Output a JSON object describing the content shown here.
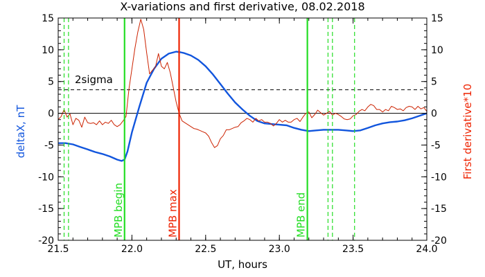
{
  "chart_data": {
    "type": "line",
    "title": "X-variations and first derivative, 08.02.2018",
    "xlabel": "UT, hours",
    "ylabel_left": "deltaX, nT",
    "ylabel_right": "First derivative*10",
    "xlim": [
      21.5,
      24.0
    ],
    "ylim": [
      -20,
      15
    ],
    "x_ticks": [
      "21.5",
      "22.0",
      "22.5",
      "23.0",
      "23.5",
      "24.0"
    ],
    "y_ticks": [
      "15",
      "10",
      "5",
      "0",
      "-5",
      "-10",
      "-15",
      "-20"
    ],
    "y_ticks_right": [
      "15",
      "10",
      "5",
      "0",
      "-5",
      "-10",
      "-15",
      "-20"
    ],
    "colors": {
      "deltaX": "#1155dd",
      "derivative": "#cc2200",
      "mpb_begin_end": "#22dd22",
      "mpb_max": "#ee2200",
      "axis": "#000000"
    },
    "threshold": {
      "label": "2sigma",
      "value": 3.7
    },
    "zero_line": 0,
    "vertical_lines": [
      {
        "label": "MPB begin",
        "x": 21.95,
        "color": "#22dd22",
        "style": "solid"
      },
      {
        "label": "MPB max",
        "x": 22.32,
        "color": "#ee2200",
        "style": "solid"
      },
      {
        "label": "MPB end",
        "x": 23.19,
        "color": "#22dd22",
        "style": "solid"
      }
    ],
    "dashed_lines": [
      {
        "x": 21.54,
        "color": "#22dd22"
      },
      {
        "x": 21.57,
        "color": "#22dd22"
      },
      {
        "x": 23.33,
        "color": "#22dd22"
      },
      {
        "x": 23.36,
        "color": "#22dd22"
      },
      {
        "x": 23.51,
        "color": "#22dd22"
      }
    ],
    "series": [
      {
        "key": "deltaX",
        "color": "#1155dd",
        "x": [
          21.5,
          21.55,
          21.6,
          21.65,
          21.7,
          21.75,
          21.8,
          21.85,
          21.9,
          21.93,
          21.95,
          21.97,
          22.0,
          22.05,
          22.1,
          22.15,
          22.2,
          22.25,
          22.3,
          22.33,
          22.35,
          22.4,
          22.45,
          22.5,
          22.55,
          22.6,
          22.65,
          22.7,
          22.75,
          22.8,
          22.85,
          22.9,
          22.95,
          23.0,
          23.05,
          23.1,
          23.15,
          23.2,
          23.25,
          23.3,
          23.35,
          23.4,
          23.45,
          23.5,
          23.55,
          23.6,
          23.65,
          23.7,
          23.75,
          23.8,
          23.85,
          23.9,
          23.95,
          24.0
        ],
        "y": [
          -4.7,
          -4.7,
          -4.9,
          -5.3,
          -5.7,
          -6.1,
          -6.4,
          -6.8,
          -7.3,
          -7.5,
          -7.3,
          -6.0,
          -3.0,
          1.0,
          4.8,
          7.0,
          8.6,
          9.4,
          9.7,
          9.6,
          9.5,
          9.1,
          8.4,
          7.4,
          6.1,
          4.6,
          3.1,
          1.7,
          0.6,
          -0.4,
          -1.2,
          -1.6,
          -1.7,
          -1.8,
          -1.9,
          -2.3,
          -2.6,
          -2.8,
          -2.7,
          -2.6,
          -2.6,
          -2.6,
          -2.7,
          -2.8,
          -2.7,
          -2.3,
          -1.9,
          -1.6,
          -1.4,
          -1.3,
          -1.1,
          -0.8,
          -0.4,
          0.0
        ]
      },
      {
        "key": "derivative",
        "color": "#cc2200",
        "x": [
          21.5,
          21.52,
          21.54,
          21.56,
          21.58,
          21.6,
          21.62,
          21.64,
          21.66,
          21.68,
          21.7,
          21.72,
          21.74,
          21.76,
          21.78,
          21.8,
          21.82,
          21.84,
          21.86,
          21.88,
          21.9,
          21.92,
          21.94,
          21.96,
          21.98,
          22.0,
          22.02,
          22.04,
          22.06,
          22.08,
          22.1,
          22.12,
          22.14,
          22.16,
          22.18,
          22.2,
          22.22,
          22.24,
          22.26,
          22.28,
          22.3,
          22.32,
          22.34,
          22.36,
          22.38,
          22.4,
          22.42,
          22.44,
          22.46,
          22.48,
          22.5,
          22.52,
          22.54,
          22.56,
          22.58,
          22.6,
          22.62,
          22.64,
          22.66,
          22.68,
          22.7,
          22.72,
          22.74,
          22.76,
          22.78,
          22.8,
          22.82,
          22.84,
          22.86,
          22.88,
          22.9,
          22.92,
          22.94,
          22.96,
          22.98,
          23.0,
          23.02,
          23.04,
          23.06,
          23.08,
          23.1,
          23.12,
          23.14,
          23.16,
          23.18,
          23.2,
          23.22,
          23.24,
          23.26,
          23.28,
          23.3,
          23.32,
          23.34,
          23.36,
          23.38,
          23.4,
          23.42,
          23.44,
          23.46,
          23.48,
          23.5,
          23.52,
          23.54,
          23.56,
          23.58,
          23.6,
          23.62,
          23.64,
          23.66,
          23.68,
          23.7,
          23.72,
          23.74,
          23.76,
          23.78,
          23.8,
          23.82,
          23.84,
          23.86,
          23.88,
          23.9,
          23.92,
          23.94,
          23.96,
          23.98,
          24.0
        ],
        "y": [
          -1.0,
          -0.5,
          0.6,
          -0.6,
          -0.1,
          -1.8,
          -0.8,
          -1.1,
          -2.2,
          -0.6,
          -1.5,
          -1.6,
          -1.5,
          -1.8,
          -1.2,
          -1.8,
          -1.4,
          -1.6,
          -1.1,
          -1.8,
          -2.1,
          -1.8,
          -1.2,
          -0.5,
          3.8,
          7.0,
          10.2,
          12.8,
          14.8,
          13.2,
          9.5,
          6.2,
          6.8,
          7.3,
          9.4,
          7.4,
          7.0,
          8.0,
          6.4,
          4.1,
          1.8,
          0.0,
          -1.2,
          -1.5,
          -1.8,
          -2.1,
          -2.4,
          -2.5,
          -2.7,
          -2.9,
          -3.1,
          -3.6,
          -4.6,
          -5.4,
          -5.1,
          -4.0,
          -3.5,
          -2.6,
          -2.6,
          -2.4,
          -2.2,
          -2.1,
          -1.5,
          -1.2,
          -0.8,
          -1.0,
          -1.4,
          -0.8,
          -1.2,
          -1.0,
          -1.4,
          -1.4,
          -1.6,
          -2.0,
          -1.6,
          -1.0,
          -1.4,
          -1.1,
          -1.4,
          -1.4,
          -1.0,
          -0.8,
          -1.3,
          -0.6,
          0.0,
          0.2,
          -0.7,
          -0.2,
          0.5,
          0.1,
          -0.3,
          0.0,
          0.3,
          -0.3,
          0.0,
          -0.2,
          -0.5,
          -0.9,
          -1.0,
          -0.9,
          -0.4,
          -0.2,
          0.3,
          0.6,
          0.4,
          1.0,
          1.4,
          1.2,
          0.6,
          0.6,
          0.2,
          0.6,
          0.4,
          1.1,
          0.9,
          0.6,
          0.7,
          0.4,
          0.9,
          1.1,
          1.0,
          0.6,
          1.1,
          0.7,
          0.9,
          0.3
        ]
      }
    ]
  }
}
